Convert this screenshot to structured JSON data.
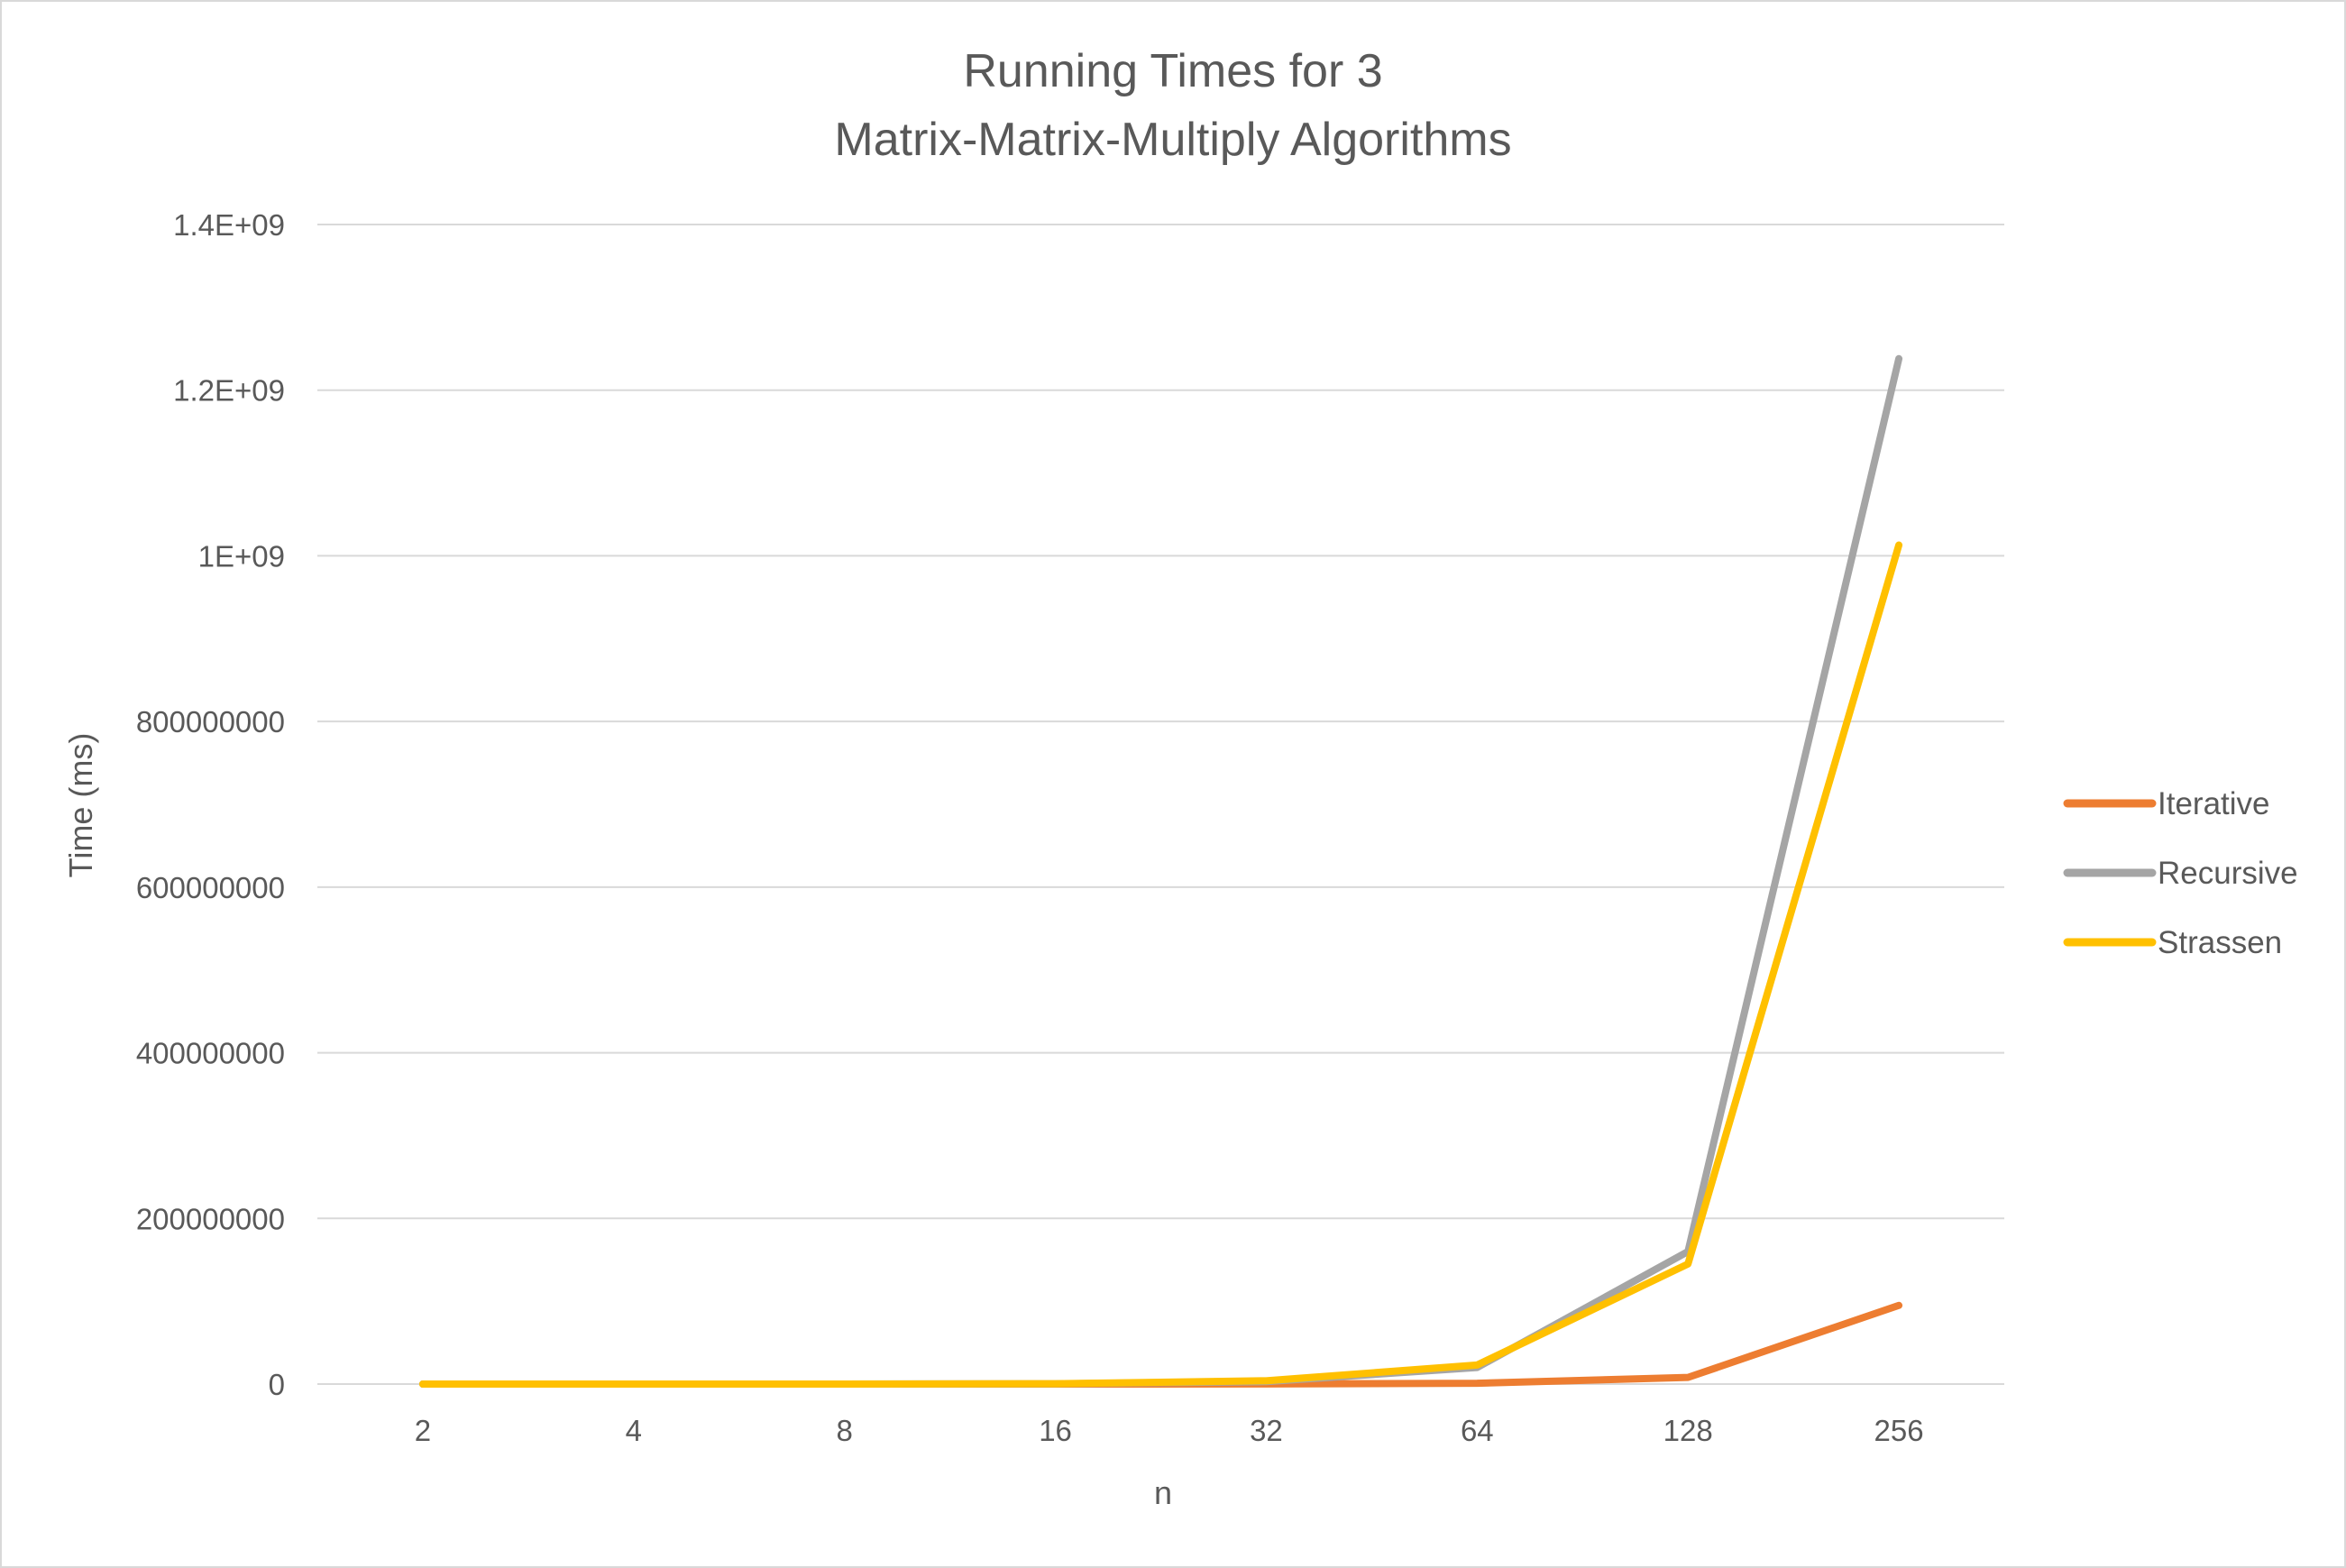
{
  "chart_data": {
    "type": "line",
    "title_lines": [
      "Running Times for 3",
      "Matrix-Matrix-Multiply Algorithms"
    ],
    "xlabel": "n",
    "ylabel": "Time (ms)",
    "categories": [
      "2",
      "4",
      "8",
      "16",
      "32",
      "64",
      "128",
      "256"
    ],
    "ylim": [
      0,
      1400000000
    ],
    "y_ticks": [
      {
        "value": 0,
        "label": "0"
      },
      {
        "value": 200000000,
        "label": "200000000"
      },
      {
        "value": 400000000,
        "label": "400000000"
      },
      {
        "value": 600000000,
        "label": "600000000"
      },
      {
        "value": 800000000,
        "label": "800000000"
      },
      {
        "value": 1000000000,
        "label": "1E+09"
      },
      {
        "value": 1200000000,
        "label": "1.2E+09"
      },
      {
        "value": 1400000000,
        "label": "1.4E+09"
      }
    ],
    "grid": true,
    "legend_position": "right",
    "series": [
      {
        "name": "Iterative",
        "color": "#ED7D31",
        "values": [
          0,
          0,
          0,
          10000,
          100000,
          1000000,
          8000000,
          95000000
        ]
      },
      {
        "name": "Recursive",
        "color": "#A5A5A5",
        "values": [
          0,
          0,
          10000,
          300000,
          3000000,
          20000000,
          160000000,
          1238000000
        ]
      },
      {
        "name": "Strassen",
        "color": "#FFC000",
        "values": [
          0,
          0,
          10000,
          400000,
          4000000,
          23000000,
          145000000,
          1013000000
        ]
      }
    ]
  }
}
